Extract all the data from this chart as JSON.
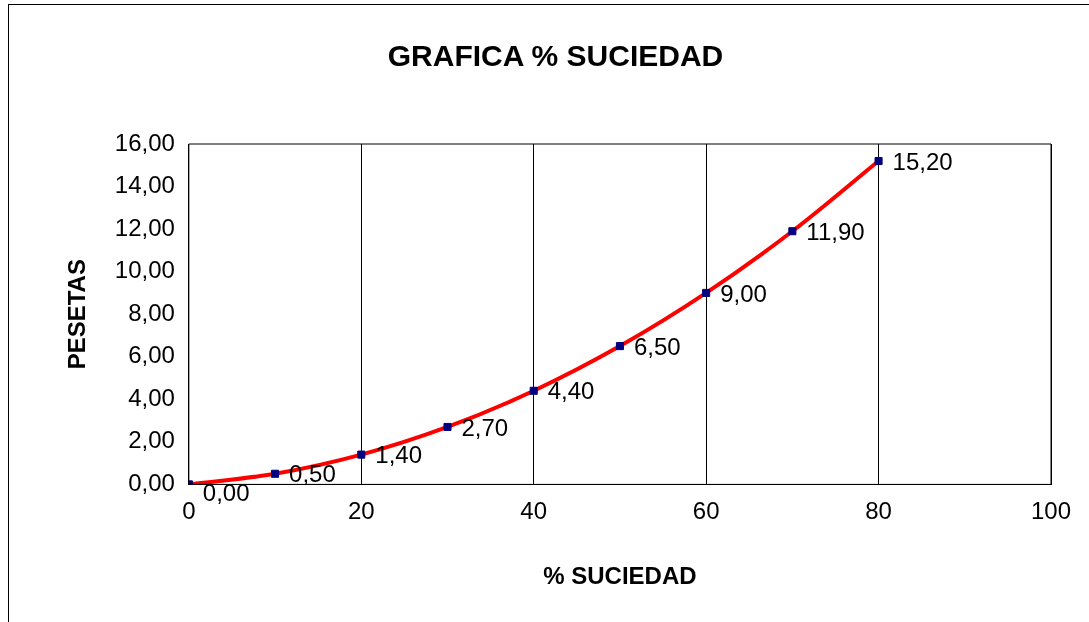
{
  "chart_data": {
    "type": "line",
    "title": "GRAFICA % SUCIEDAD",
    "xlabel": "% SUCIEDAD",
    "ylabel": "PESETAS",
    "x": [
      0,
      10,
      20,
      30,
      40,
      50,
      60,
      70,
      80
    ],
    "series": [
      {
        "color": "#ff0000",
        "marker": "none",
        "values": [
          0,
          0.5,
          1.4,
          2.7,
          4.4,
          6.5,
          9.0,
          11.9,
          15.2
        ]
      },
      {
        "type": "scatter",
        "color": "#000080",
        "marker": "square",
        "values": [
          0,
          0.5,
          1.4,
          2.7,
          4.4,
          6.5,
          9.0,
          11.9,
          15.2
        ],
        "value_labels": [
          "0,00",
          "0,50",
          "1,40",
          "2,70",
          "4,40",
          "6,50",
          "9,00",
          "11,90",
          "15,20"
        ]
      }
    ],
    "xlim": [
      0,
      100
    ],
    "xticks": [
      0,
      20,
      40,
      60,
      80,
      100
    ],
    "ylim": [
      0,
      16
    ],
    "yticks": [
      {
        "value": 0,
        "label": "0,00"
      },
      {
        "value": 2,
        "label": "2,00"
      },
      {
        "value": 4,
        "label": "4,00"
      },
      {
        "value": 6,
        "label": "6,00"
      },
      {
        "value": 8,
        "label": "8,00"
      },
      {
        "value": 10,
        "label": "10,00"
      },
      {
        "value": 12,
        "label": "12,00"
      },
      {
        "value": 14,
        "label": "14,00"
      },
      {
        "value": 16,
        "label": "16,00"
      }
    ],
    "grid": "x",
    "legend": false
  }
}
